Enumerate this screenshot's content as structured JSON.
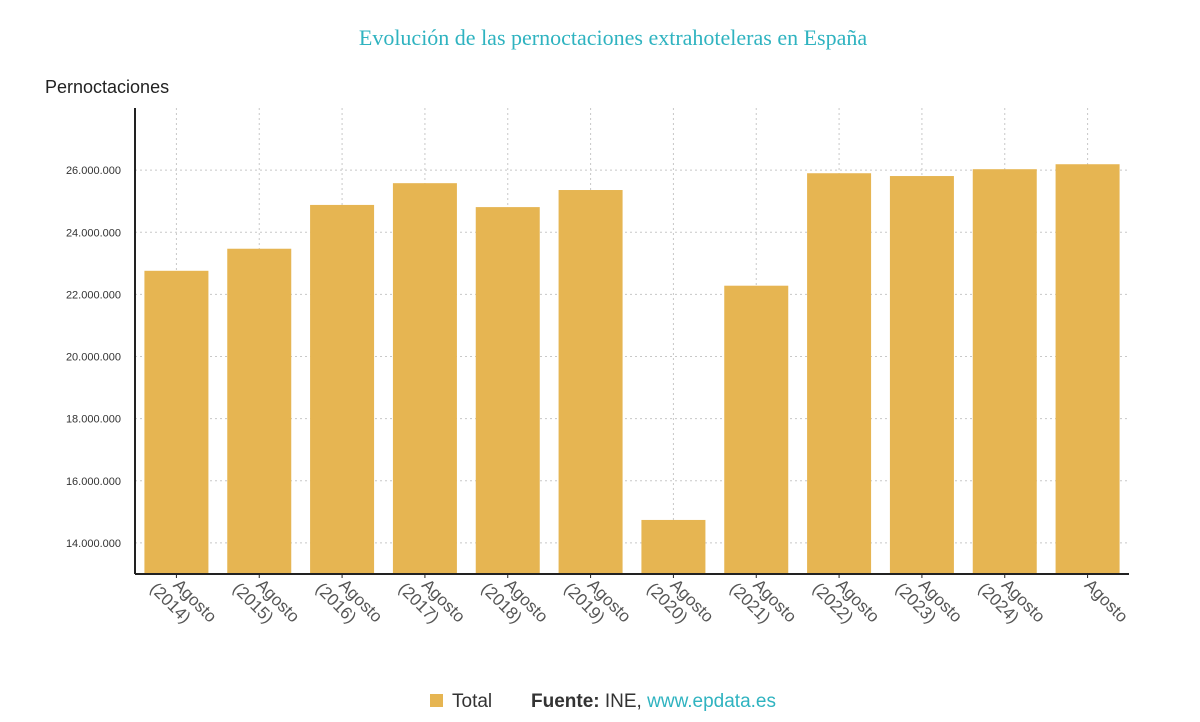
{
  "chart_data": {
    "type": "bar",
    "title": "Evolución de las pernoctaciones extrahoteleras en España",
    "xlabel": "",
    "ylabel": "Pernoctaciones",
    "categories": [
      [
        "Agosto",
        "(2014)"
      ],
      [
        "Agosto",
        "(2015)"
      ],
      [
        "Agosto",
        "(2016)"
      ],
      [
        "Agosto",
        "(2017)"
      ],
      [
        "Agosto",
        "(2018)"
      ],
      [
        "Agosto",
        "(2019)"
      ],
      [
        "Agosto",
        "(2020)"
      ],
      [
        "Agosto",
        "(2021)"
      ],
      [
        "Agosto",
        "(2022)"
      ],
      [
        "Agosto",
        "(2023)"
      ],
      [
        "Agosto",
        "(2024)"
      ],
      [
        "Agosto"
      ]
    ],
    "series": [
      {
        "name": "Total",
        "color": "#e6b552",
        "values": [
          22760000,
          23470000,
          24880000,
          25580000,
          24810000,
          25360000,
          14740000,
          22280000,
          25900000,
          25810000,
          26030000,
          26190000
        ]
      }
    ],
    "ylim": [
      13000000,
      28000000
    ],
    "yticks": [
      14000000,
      16000000,
      18000000,
      20000000,
      22000000,
      24000000,
      26000000
    ],
    "ytick_labels": [
      "14.000.000",
      "16.000.000",
      "18.000.000",
      "20.000.000",
      "22.000.000",
      "24.000.000",
      "26.000.000"
    ],
    "grid": true,
    "legend": "bottom"
  },
  "footer": {
    "legend_label": "Total",
    "source_label": "Fuente:",
    "source_text": " INE, ",
    "source_link": "www.epdata.es"
  },
  "colors": {
    "title": "#2fb3c0",
    "bar": "#e6b552",
    "link": "#2fb3c0"
  }
}
